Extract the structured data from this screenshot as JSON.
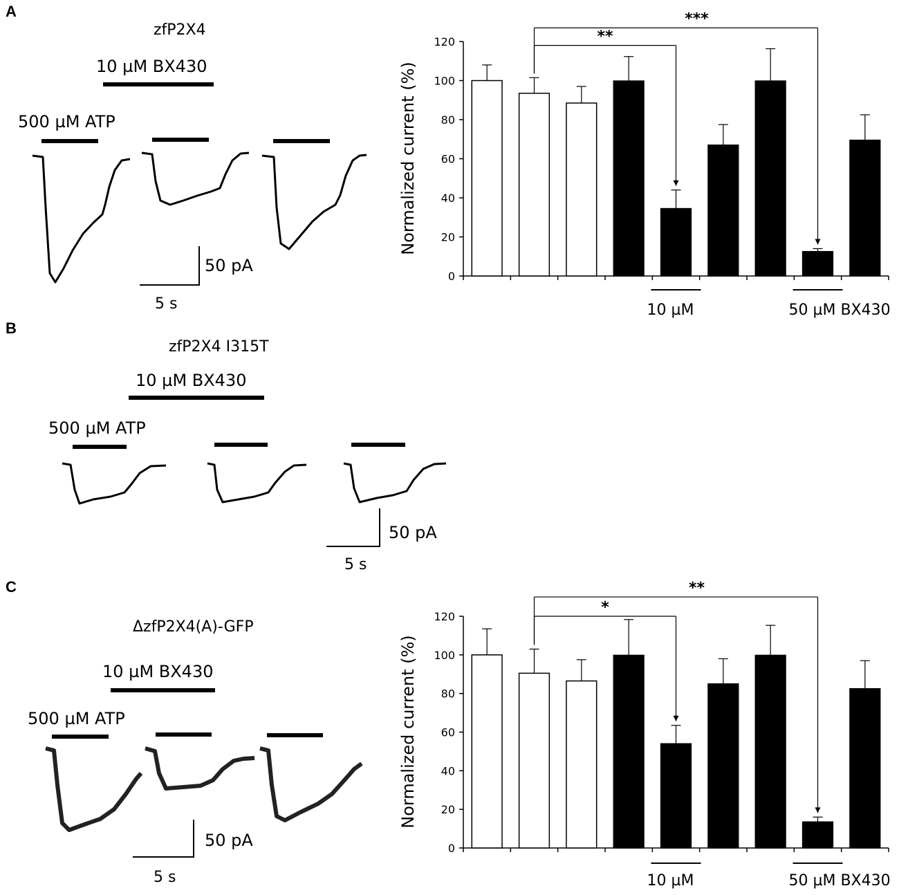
{
  "panels": {
    "a": {
      "letter": "A",
      "title": "zfP2X4",
      "bx_label": "10 µM BX430",
      "atp_label": "500 µM ATP",
      "scale_y": "50 pA",
      "scale_x": "5 s"
    },
    "b": {
      "letter": "B",
      "title": "zfP2X4 I315T",
      "bx_label": "10 µM BX430",
      "atp_label": "500 µM ATP",
      "scale_y": "50 pA",
      "scale_x": "5 s"
    },
    "c": {
      "letter": "C",
      "title": "ΔzfP2X4(A)-GFP",
      "bx_label": "10 µM BX430",
      "atp_label": "500 µM ATP",
      "scale_y": "50 pA",
      "scale_x": "5 s"
    }
  },
  "chart_data": [
    {
      "type": "bar",
      "panel": "A",
      "title": "",
      "xlabel": "",
      "ylabel": "Normalized current (%)",
      "ylim": [
        0,
        120
      ],
      "yticks": [
        0,
        20,
        40,
        60,
        80,
        100,
        120
      ],
      "values": [
        100,
        93.5,
        88.5,
        99.8,
        34.5,
        67,
        99.8,
        12.5,
        69.5
      ],
      "errors": [
        8,
        8,
        8.5,
        12.5,
        9.5,
        10.5,
        16.5,
        1.5,
        13
      ],
      "fills": [
        "#ffffff",
        "#ffffff",
        "#ffffff",
        "#000000",
        "#000000",
        "#000000",
        "#000000",
        "#000000",
        "#000000"
      ],
      "group_labels": [
        {
          "text": "10 µM",
          "under_bar": 4
        },
        {
          "text": "50 µM BX430",
          "under_bar": 7
        }
      ],
      "significance": [
        {
          "from": 1,
          "to": 4,
          "label": "**",
          "y": 118
        },
        {
          "from": 1,
          "to": 7,
          "label": "***",
          "y": 127
        }
      ]
    },
    {
      "type": "bar",
      "panel": "C",
      "title": "",
      "xlabel": "",
      "ylabel": "Normalized current (%)",
      "ylim": [
        0,
        120
      ],
      "yticks": [
        0,
        20,
        40,
        60,
        80,
        100,
        120
      ],
      "values": [
        100,
        90.5,
        86.5,
        99.8,
        54,
        85,
        99.8,
        13.5,
        82.5
      ],
      "errors": [
        13.5,
        12.5,
        11,
        18.5,
        9.5,
        13,
        15.5,
        2.5,
        14.5
      ],
      "fills": [
        "#ffffff",
        "#ffffff",
        "#ffffff",
        "#000000",
        "#000000",
        "#000000",
        "#000000",
        "#000000",
        "#000000"
      ],
      "group_labels": [
        {
          "text": "10 µM",
          "under_bar": 4
        },
        {
          "text": "50 µM BX430",
          "under_bar": 7
        }
      ],
      "significance": [
        {
          "from": 1,
          "to": 4,
          "label": "*",
          "y": 120
        },
        {
          "from": 1,
          "to": 7,
          "label": "**",
          "y": 130
        }
      ]
    }
  ]
}
